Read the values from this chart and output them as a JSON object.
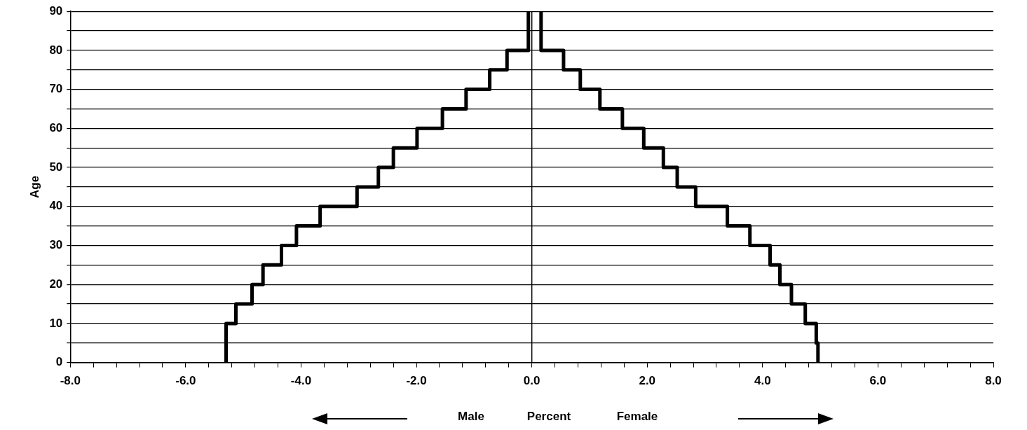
{
  "chart_data": {
    "type": "line",
    "xlabel": "Percent",
    "ylabel": "Age",
    "annotations": [
      "Male",
      "Female"
    ],
    "series": [
      {
        "color": "#000000",
        "x": [
          -5.3,
          -5.3,
          -5.13,
          -5.13,
          -4.85,
          -4.85,
          -4.66,
          -4.66,
          -4.34,
          -4.34,
          -4.08,
          -4.08,
          -3.67,
          -3.67,
          -3.03,
          -3.03,
          -2.66,
          -2.66,
          -2.4,
          -2.4,
          -1.99,
          -1.99,
          -1.55,
          -1.55,
          -1.14,
          -1.14,
          -0.73,
          -0.73,
          -0.43,
          -0.43,
          -0.06,
          -0.06
        ],
        "values": [
          0,
          10,
          10,
          15,
          15,
          20,
          20,
          25,
          25,
          30,
          30,
          35,
          35,
          40,
          40,
          45,
          45,
          50,
          50,
          55,
          55,
          60,
          60,
          65,
          65,
          70,
          70,
          75,
          75,
          80,
          80,
          90
        ]
      },
      {
        "color": "#000000",
        "x": [
          4.96,
          4.96,
          4.93,
          4.93,
          4.74,
          4.74,
          4.5,
          4.5,
          4.3,
          4.3,
          4.13,
          4.13,
          3.78,
          3.78,
          3.39,
          3.39,
          2.84,
          2.84,
          2.52,
          2.52,
          2.28,
          2.28,
          1.94,
          1.94,
          1.57,
          1.57,
          1.18,
          1.18,
          0.84,
          0.84,
          0.55,
          0.55,
          0.16,
          0.16
        ],
        "values": [
          0,
          5,
          5,
          10,
          10,
          15,
          15,
          20,
          20,
          25,
          25,
          30,
          30,
          35,
          35,
          40,
          40,
          45,
          45,
          50,
          50,
          55,
          55,
          60,
          60,
          65,
          65,
          70,
          70,
          75,
          75,
          80,
          80,
          90
        ]
      }
    ],
    "xlim": [
      -8,
      8
    ],
    "xticks": [
      {
        "value": -8,
        "label": "-8.0"
      },
      {
        "value": -7.6,
        "label": null
      },
      {
        "value": -7.2,
        "label": null
      },
      {
        "value": -6.8,
        "label": null
      },
      {
        "value": -6.4,
        "label": null
      },
      {
        "value": -6,
        "label": "-6.0"
      },
      {
        "value": -5.6,
        "label": null
      },
      {
        "value": -5.2,
        "label": null
      },
      {
        "value": -4.8,
        "label": null
      },
      {
        "value": -4.4,
        "label": null
      },
      {
        "value": -4,
        "label": "-4.0"
      },
      {
        "value": -3.6,
        "label": null
      },
      {
        "value": -3.2,
        "label": null
      },
      {
        "value": -2.8,
        "label": null
      },
      {
        "value": -2.4,
        "label": null
      },
      {
        "value": -2,
        "label": "-2.0"
      },
      {
        "value": -1.6,
        "label": null
      },
      {
        "value": -1.2,
        "label": null
      },
      {
        "value": -0.8,
        "label": null
      },
      {
        "value": -0.4,
        "label": null
      },
      {
        "value": 0,
        "label": "0.0"
      },
      {
        "value": 0.4,
        "label": null
      },
      {
        "value": 0.8,
        "label": null
      },
      {
        "value": 1.2,
        "label": null
      },
      {
        "value": 1.6,
        "label": null
      },
      {
        "value": 2,
        "label": "2.0"
      },
      {
        "value": 2.4,
        "label": null
      },
      {
        "value": 2.8,
        "label": null
      },
      {
        "value": 3.2,
        "label": null
      },
      {
        "value": 3.6,
        "label": null
      },
      {
        "value": 4,
        "label": "4.0"
      },
      {
        "value": 4.4,
        "label": null
      },
      {
        "value": 4.8,
        "label": null
      },
      {
        "value": 5.2,
        "label": null
      },
      {
        "value": 5.6,
        "label": null
      },
      {
        "value": 6,
        "label": "6.0"
      },
      {
        "value": 6.4,
        "label": null
      },
      {
        "value": 6.8,
        "label": null
      },
      {
        "value": 7.2,
        "label": null
      },
      {
        "value": 7.6,
        "label": null
      },
      {
        "value": 8,
        "label": "8.0"
      }
    ],
    "ylim": [
      0,
      90
    ],
    "yticks": [
      0,
      {
        "value": 5,
        "label": null
      },
      10,
      {
        "value": 15,
        "label": null
      },
      20,
      {
        "value": 25,
        "label": null
      },
      30,
      {
        "value": 35,
        "label": null
      },
      40,
      {
        "value": 45,
        "label": null
      },
      50,
      {
        "value": 55,
        "label": null
      },
      60,
      {
        "value": 65,
        "label": null
      },
      70,
      {
        "value": 75,
        "label": null
      },
      80,
      {
        "value": 85,
        "label": null
      },
      90
    ],
    "ref_lines": [
      {
        "axis": "x",
        "value": 0,
        "color": "#000000"
      }
    ],
    "grid": "y",
    "legend": false,
    "marker": "none",
    "line_style": "solid"
  }
}
